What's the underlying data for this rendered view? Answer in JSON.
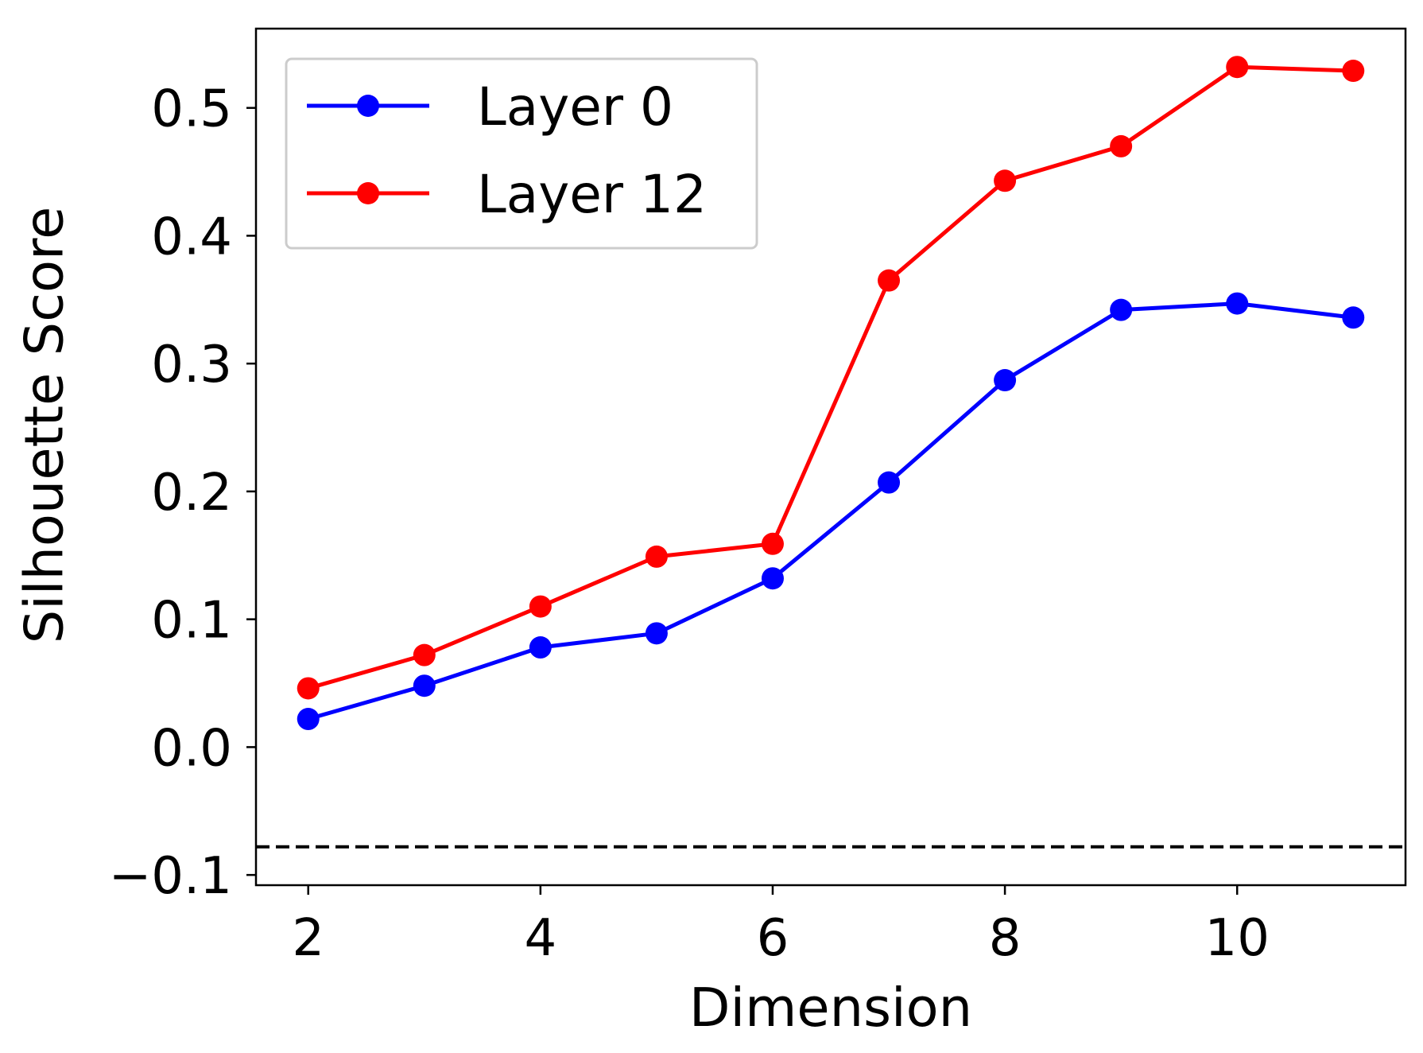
{
  "chart_data": {
    "type": "line",
    "title": "",
    "xlabel": "Dimension",
    "ylabel": "Silhouette Score",
    "x": [
      2,
      3,
      4,
      5,
      6,
      7,
      8,
      9,
      10,
      11
    ],
    "xlim": [
      1.55,
      11.45
    ],
    "ylim": [
      -0.108,
      0.562
    ],
    "xticks": [
      2,
      4,
      6,
      8,
      10
    ],
    "yticks": [
      -0.1,
      0.0,
      0.1,
      0.2,
      0.3,
      0.4,
      0.5
    ],
    "xtick_labels": [
      "2",
      "4",
      "6",
      "8",
      "10"
    ],
    "ytick_labels": [
      "−0.1",
      "0.0",
      "0.1",
      "0.2",
      "0.3",
      "0.4",
      "0.5"
    ],
    "series": [
      {
        "name": "Layer 0",
        "color": "#0000ff",
        "values": [
          0.022,
          0.048,
          0.078,
          0.089,
          0.132,
          0.207,
          0.287,
          0.342,
          0.347,
          0.336
        ]
      },
      {
        "name": "Layer 12",
        "color": "#ff0000",
        "values": [
          0.046,
          0.072,
          0.11,
          0.149,
          0.159,
          0.365,
          0.443,
          0.47,
          0.532,
          0.529
        ]
      }
    ],
    "reference_line": {
      "y": -0.078,
      "style": "dashed",
      "color": "#000000"
    },
    "grid": false,
    "legend_position": "top-left"
  }
}
